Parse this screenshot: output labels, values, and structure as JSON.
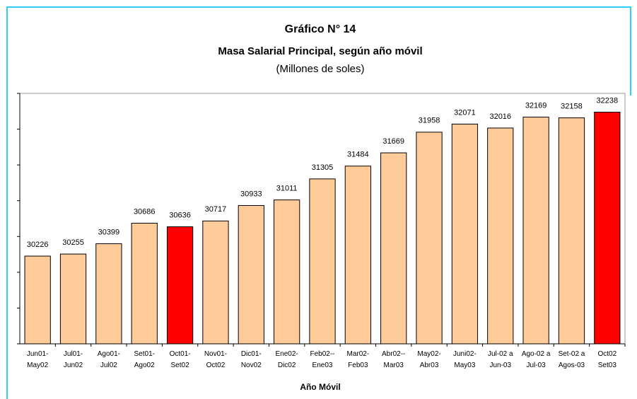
{
  "chart_data": {
    "type": "bar",
    "title": "Gráfico N° 14",
    "subtitle": "Masa Salarial Principal, según año móvil",
    "units": "(Millones de soles)",
    "x_label": "Año Móvil",
    "categories": [
      "Jun01-\nMay02",
      "Jul01-\nJun02",
      "Ago01-\nJul02",
      "Set01-\nAgo02",
      "Oct01-\nSet02",
      "Nov01-\nOct02",
      "Dic01-\nNov02",
      "Ene02-\nDic02",
      "Feb02--\nEne03",
      "Mar02-\nFeb03",
      "Abr02--\nMar03",
      "May02-\nAbr03",
      "Juni02-\nMay03",
      "Jul-02 a\nJun-03",
      "Ago-02 a\nJul-03",
      "Set-02 a\nAgos-03",
      "Oct02\nSet03"
    ],
    "values": [
      30226,
      30255,
      30399,
      30686,
      30636,
      30717,
      30933,
      31011,
      31305,
      31484,
      31669,
      31958,
      32071,
      32016,
      32169,
      32158,
      32238
    ],
    "colors": [
      "#ffcc99",
      "#ffcc99",
      "#ffcc99",
      "#ffcc99",
      "#ff0000",
      "#ffcc99",
      "#ffcc99",
      "#ffcc99",
      "#ffcc99",
      "#ffcc99",
      "#ffcc99",
      "#ffcc99",
      "#ffcc99",
      "#ffcc99",
      "#ffcc99",
      "#ffcc99",
      "#ff0000"
    ],
    "ylim": [
      29000,
      32500
    ],
    "yticks": [
      29000,
      29500,
      30000,
      30500,
      31000,
      31500,
      32000,
      32500
    ],
    "grid": false
  }
}
